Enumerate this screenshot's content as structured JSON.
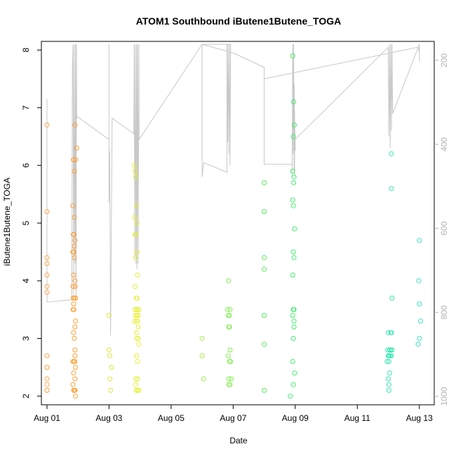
{
  "chart_data": {
    "type": "scatter",
    "title": "ATOM1 Southbound iButene1Butene_TOGA",
    "xlabel": "Date",
    "ylabel": "iButene1Butene_TOGA",
    "x_ticks": [
      "Aug 01",
      "Aug 03",
      "Aug 05",
      "Aug 07",
      "Aug 09",
      "Aug 11",
      "Aug 13"
    ],
    "x_tick_days": [
      1,
      3,
      5,
      7,
      9,
      11,
      13
    ],
    "xlim_days": [
      0.82,
      13.48
    ],
    "y_ticks": [
      2,
      3,
      4,
      5,
      6,
      7,
      8
    ],
    "ylim": [
      1.85,
      8.15
    ],
    "right_axis": {
      "ticks": [
        200,
        400,
        600,
        800,
        1000
      ],
      "ylim_inverted": [
        1020,
        155
      ],
      "color": "#b3b3b3"
    },
    "grid": false,
    "legend": "none",
    "line_color": "#c8c8c8",
    "series": [
      {
        "color": "#ffa64d",
        "points": [
          [
            1.0,
            6.7
          ],
          [
            1.0,
            5.2
          ],
          [
            1.0,
            4.4
          ],
          [
            1.0,
            4.3
          ],
          [
            1.0,
            4.1
          ],
          [
            1.0,
            3.9
          ],
          [
            1.0,
            3.8
          ],
          [
            1.0,
            2.7
          ],
          [
            1.0,
            2.5
          ],
          [
            1.0,
            2.5
          ],
          [
            1.0,
            2.3
          ],
          [
            1.0,
            2.2
          ],
          [
            1.0,
            2.1
          ],
          [
            1.0,
            2.1
          ]
        ]
      },
      {
        "color": "#ff9f33",
        "points": [
          [
            1.85,
            6.1
          ],
          [
            1.88,
            5.9
          ],
          [
            1.83,
            5.3
          ],
          [
            1.88,
            5.1
          ],
          [
            1.85,
            4.8
          ],
          [
            1.87,
            4.8
          ],
          [
            1.9,
            4.7
          ],
          [
            1.88,
            4.6
          ],
          [
            1.84,
            4.5
          ],
          [
            1.86,
            4.5
          ],
          [
            1.88,
            4.4
          ],
          [
            1.86,
            4.1
          ],
          [
            1.9,
            4.0
          ],
          [
            1.84,
            3.9
          ],
          [
            1.91,
            3.9
          ],
          [
            1.85,
            3.7
          ],
          [
            1.88,
            3.7
          ],
          [
            1.92,
            3.7
          ],
          [
            1.86,
            3.6
          ],
          [
            1.84,
            3.5
          ],
          [
            1.87,
            3.5
          ],
          [
            1.92,
            3.3
          ],
          [
            1.9,
            3.2
          ],
          [
            1.86,
            3.1
          ],
          [
            1.88,
            3.0
          ],
          [
            1.9,
            2.8
          ],
          [
            1.9,
            2.7
          ],
          [
            1.84,
            2.6
          ],
          [
            1.87,
            2.6
          ],
          [
            1.9,
            2.6
          ],
          [
            1.92,
            2.5
          ],
          [
            1.86,
            2.4
          ],
          [
            1.9,
            2.3
          ],
          [
            1.84,
            2.2
          ],
          [
            1.86,
            2.1
          ],
          [
            1.88,
            2.1
          ],
          [
            1.91,
            2.1
          ],
          [
            1.9,
            6.7
          ],
          [
            1.96,
            6.3
          ],
          [
            1.92,
            6.1
          ],
          [
            1.92,
            2.0
          ]
        ]
      },
      {
        "color": "#dfe544",
        "points": [
          [
            3.0,
            3.4
          ],
          [
            3.0,
            2.8
          ],
          [
            3.02,
            2.7
          ],
          [
            3.03,
            2.3
          ],
          [
            3.05,
            2.1
          ],
          [
            3.08,
            2.5
          ]
        ]
      },
      {
        "color": "#e8f033",
        "points": [
          [
            3.82,
            6.0
          ],
          [
            3.84,
            5.9
          ],
          [
            3.86,
            5.8
          ],
          [
            3.88,
            5.3
          ],
          [
            3.82,
            5.1
          ],
          [
            3.9,
            5.0
          ],
          [
            3.84,
            4.8
          ],
          [
            3.86,
            4.8
          ],
          [
            3.9,
            4.5
          ],
          [
            3.85,
            4.4
          ],
          [
            3.92,
            4.1
          ],
          [
            3.84,
            3.9
          ],
          [
            3.88,
            3.7
          ],
          [
            3.9,
            3.7
          ],
          [
            3.84,
            3.5
          ],
          [
            3.88,
            3.5
          ],
          [
            3.92,
            3.5
          ],
          [
            3.96,
            3.5
          ],
          [
            3.86,
            3.4
          ],
          [
            3.9,
            3.4
          ],
          [
            3.94,
            3.4
          ],
          [
            3.82,
            3.3
          ],
          [
            3.88,
            3.3
          ],
          [
            3.92,
            3.3
          ],
          [
            3.94,
            3.2
          ],
          [
            3.88,
            3.1
          ],
          [
            3.9,
            3.0
          ],
          [
            3.94,
            3.0
          ],
          [
            3.96,
            2.9
          ],
          [
            3.88,
            2.7
          ],
          [
            3.92,
            2.6
          ],
          [
            3.86,
            2.3
          ],
          [
            3.92,
            2.3
          ],
          [
            3.86,
            2.2
          ],
          [
            3.88,
            2.1
          ],
          [
            3.92,
            2.1
          ],
          [
            3.96,
            2.1
          ]
        ]
      },
      {
        "color": "#a6f04d",
        "points": [
          [
            6.0,
            3.0
          ],
          [
            6.0,
            2.7
          ],
          [
            6.05,
            2.3
          ]
        ]
      },
      {
        "color": "#80ef4d",
        "points": [
          [
            6.85,
            4.0
          ],
          [
            6.82,
            3.5
          ],
          [
            6.9,
            3.5
          ],
          [
            6.84,
            3.4
          ],
          [
            6.88,
            3.4
          ],
          [
            6.86,
            3.2
          ],
          [
            6.88,
            3.2
          ],
          [
            6.9,
            2.8
          ],
          [
            6.84,
            2.7
          ],
          [
            6.88,
            2.6
          ],
          [
            6.92,
            2.6
          ],
          [
            6.86,
            2.3
          ],
          [
            6.94,
            2.3
          ],
          [
            6.86,
            2.2
          ],
          [
            6.9,
            2.2
          ]
        ]
      },
      {
        "color": "#55ee55",
        "points": [
          [
            8.0,
            5.7
          ],
          [
            8.0,
            5.2
          ],
          [
            8.0,
            4.4
          ],
          [
            8.0,
            4.2
          ],
          [
            8.0,
            3.4
          ],
          [
            8.0,
            2.9
          ],
          [
            8.0,
            2.1
          ]
        ]
      },
      {
        "color": "#3fee6a",
        "points": [
          [
            8.92,
            7.9
          ],
          [
            8.95,
            7.1
          ],
          [
            8.97,
            6.7
          ],
          [
            8.94,
            6.5
          ],
          [
            8.92,
            5.9
          ],
          [
            8.96,
            5.8
          ],
          [
            8.95,
            5.7
          ],
          [
            8.92,
            5.4
          ],
          [
            8.94,
            5.3
          ],
          [
            8.98,
            4.9
          ],
          [
            8.94,
            4.5
          ],
          [
            8.96,
            4.4
          ],
          [
            8.92,
            4.1
          ],
          [
            8.94,
            3.5
          ],
          [
            8.96,
            3.5
          ],
          [
            8.92,
            3.4
          ],
          [
            8.96,
            3.3
          ],
          [
            8.96,
            3.2
          ],
          [
            8.94,
            3.0
          ],
          [
            8.92,
            2.6
          ],
          [
            8.98,
            2.4
          ],
          [
            8.94,
            2.2
          ],
          [
            8.84,
            2.0
          ]
        ]
      },
      {
        "color": "#33e6b0",
        "points": [
          [
            12.1,
            6.2
          ],
          [
            12.1,
            5.6
          ],
          [
            12.12,
            3.7
          ],
          [
            12.0,
            3.1
          ],
          [
            12.08,
            3.1
          ],
          [
            12.1,
            3.1
          ],
          [
            11.98,
            2.8
          ],
          [
            12.04,
            2.8
          ],
          [
            12.08,
            2.8
          ],
          [
            12.12,
            2.8
          ],
          [
            12.0,
            2.7
          ],
          [
            12.02,
            2.7
          ],
          [
            12.06,
            2.7
          ],
          [
            12.1,
            2.7
          ],
          [
            11.96,
            2.6
          ],
          [
            12.02,
            2.6
          ],
          [
            12.04,
            2.4
          ],
          [
            12.0,
            2.3
          ],
          [
            12.02,
            2.2
          ],
          [
            12.02,
            2.1
          ]
        ]
      },
      {
        "color": "#3ae0c0",
        "points": [
          [
            13.0,
            4.7
          ],
          [
            12.98,
            4.0
          ],
          [
            13.0,
            3.6
          ],
          [
            13.04,
            3.3
          ],
          [
            13.0,
            3.0
          ],
          [
            12.96,
            2.9
          ]
        ]
      }
    ],
    "flight_path": [
      [
        1.0,
        4.9
      ],
      [
        1.0,
        7.15
      ],
      [
        1.0,
        3.63
      ],
      [
        1.8,
        3.67
      ],
      [
        1.82,
        7.7
      ],
      [
        1.84,
        8.1
      ],
      [
        1.86,
        3.7
      ],
      [
        1.88,
        8.1
      ],
      [
        1.9,
        4.3
      ],
      [
        1.92,
        8.1
      ],
      [
        1.93,
        4.5
      ],
      [
        1.94,
        3.7
      ],
      [
        1.95,
        8.1
      ],
      [
        1.96,
        6.8
      ],
      [
        1.96,
        6.85
      ],
      [
        3.0,
        6.45
      ],
      [
        3.0,
        8.1
      ],
      [
        3.0,
        5.35
      ],
      [
        3.02,
        6.25
      ],
      [
        3.05,
        3.05
      ],
      [
        3.1,
        6.82
      ],
      [
        3.8,
        6.55
      ],
      [
        3.81,
        8.1
      ],
      [
        3.83,
        4.4
      ],
      [
        3.85,
        8.1
      ],
      [
        3.87,
        4.3
      ],
      [
        3.89,
        8.1
      ],
      [
        3.9,
        4.2
      ],
      [
        3.92,
        8.1
      ],
      [
        3.94,
        4.3
      ],
      [
        3.96,
        8.1
      ],
      [
        3.97,
        6.45
      ],
      [
        6.0,
        8.1
      ],
      [
        6.0,
        5.8
      ],
      [
        6.05,
        6.05
      ],
      [
        6.8,
        5.88
      ],
      [
        6.8,
        8.1
      ],
      [
        6.82,
        6.4
      ],
      [
        6.84,
        8.1
      ],
      [
        6.86,
        6.2
      ],
      [
        6.88,
        8.1
      ],
      [
        6.9,
        6.0
      ],
      [
        6.92,
        8.1
      ],
      [
        6.0,
        8.1
      ],
      [
        7.0,
        7.95
      ],
      [
        8.0,
        7.7
      ],
      [
        8.0,
        6.02
      ],
      [
        8.9,
        6.02
      ],
      [
        8.9,
        5.8
      ],
      [
        8.92,
        8.1
      ],
      [
        8.93,
        6.2
      ],
      [
        8.95,
        8.1
      ],
      [
        8.96,
        5.9
      ],
      [
        8.97,
        7.4
      ],
      [
        8.98,
        5.8
      ],
      [
        8.98,
        6.95
      ],
      [
        9.0,
        6.25
      ],
      [
        9.0,
        6.45
      ],
      [
        12.0,
        8.05
      ],
      [
        12.02,
        6.5
      ],
      [
        12.04,
        8.1
      ],
      [
        12.06,
        6.3
      ],
      [
        12.08,
        8.1
      ],
      [
        12.1,
        6.6
      ],
      [
        12.12,
        8.1
      ],
      [
        12.14,
        6.9
      ],
      [
        13.0,
        8.1
      ],
      [
        13.0,
        7.8
      ],
      [
        13.0,
        7.95
      ],
      [
        12.96,
        8.05
      ],
      [
        8.0,
        7.5
      ]
    ]
  }
}
